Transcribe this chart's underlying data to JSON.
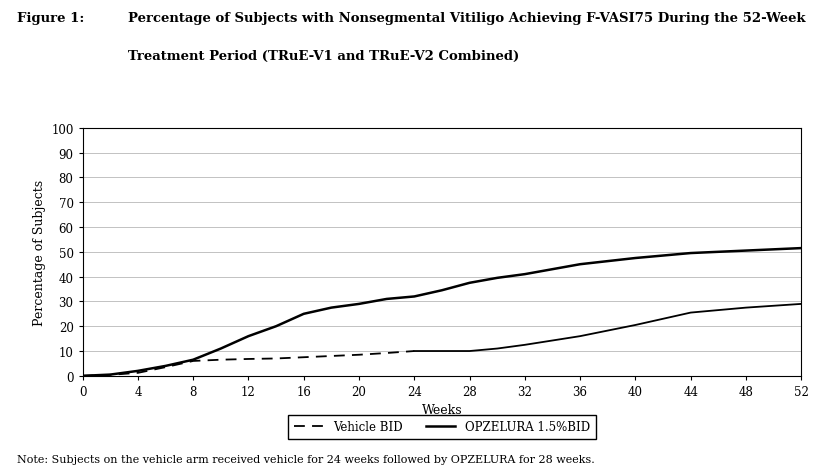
{
  "title_label": "Figure 1:",
  "title_text_line1": "Percentage of Subjects with Nonsegmental Vitiligo Achieving F-VASI75 During the 52-Week",
  "title_text_line2": "Treatment Period (TRuE-V1 and TRuE-V2 Combined)",
  "xlabel": "Weeks",
  "ylabel": "Percentage of Subjects",
  "note": "Note: Subjects on the vehicle arm received vehicle for 24 weeks followed by OPZELURA for 28 weeks.",
  "xlim": [
    0,
    52
  ],
  "ylim": [
    0,
    100
  ],
  "xticks": [
    0,
    4,
    8,
    12,
    16,
    20,
    24,
    28,
    32,
    36,
    40,
    44,
    48,
    52
  ],
  "yticks": [
    0,
    10,
    20,
    30,
    40,
    50,
    60,
    70,
    80,
    90,
    100
  ],
  "vehicle_x": [
    0,
    2,
    4,
    6,
    8,
    10,
    12,
    14,
    16,
    18,
    20,
    22,
    24
  ],
  "vehicle_y": [
    0,
    0.4,
    1.2,
    3.5,
    6.0,
    6.5,
    6.8,
    7.0,
    7.5,
    8.0,
    8.5,
    9.2,
    10.0
  ],
  "opzelura_x": [
    0,
    2,
    4,
    6,
    8,
    10,
    12,
    14,
    16,
    18,
    20,
    22,
    24,
    26,
    28,
    30,
    32,
    36,
    40,
    44,
    48,
    50,
    52
  ],
  "opzelura_y": [
    0,
    0.5,
    2.0,
    4.0,
    6.5,
    11.0,
    16.0,
    20.0,
    25.0,
    27.5,
    29.0,
    31.0,
    32.0,
    34.5,
    37.5,
    39.5,
    41.0,
    45.0,
    47.5,
    49.5,
    50.5,
    51.0,
    51.5
  ],
  "vehicle_after_x": [
    24,
    26,
    28,
    30,
    32,
    36,
    40,
    44,
    48,
    52
  ],
  "vehicle_after_y": [
    10.0,
    10.0,
    10.0,
    11.0,
    12.5,
    16.0,
    20.5,
    25.5,
    27.5,
    29.0
  ],
  "vehicle_color": "#000000",
  "opzelura_color": "#000000",
  "background_color": "#ffffff",
  "legend_vehicle": "Vehicle BID",
  "legend_opzelura": "OPZELURA 1.5%BID",
  "figsize": [
    8.26,
    4.77
  ],
  "dpi": 100
}
